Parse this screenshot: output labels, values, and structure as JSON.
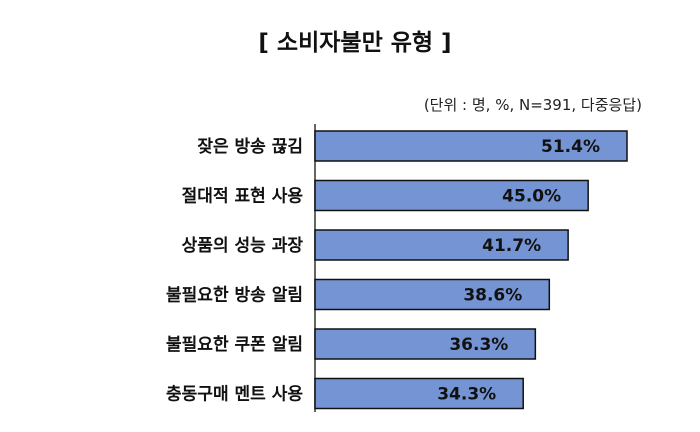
{
  "chart_data": {
    "type": "bar",
    "orientation": "horizontal",
    "title": "[ 소비자불만 유형 ]",
    "subtitle": "(단위 : 명, %, N=391, 다중응답)",
    "categories": [
      "잦은 방송 끊김",
      "절대적 표현 사용",
      "상품의 성능 과장",
      "불필요한 방송 알림",
      "불필요한 쿠폰 알림",
      "충동구매 멘트 사용"
    ],
    "values": [
      51.4,
      45.0,
      41.7,
      38.6,
      36.3,
      34.3
    ],
    "value_labels": [
      "51.4%",
      "45.0%",
      "41.7%",
      "38.6%",
      "36.3%",
      "34.3%"
    ],
    "xlim": [
      0,
      55
    ],
    "grid": false,
    "colors": {
      "bar": "#7594d4",
      "bar_border": "#111111"
    }
  }
}
